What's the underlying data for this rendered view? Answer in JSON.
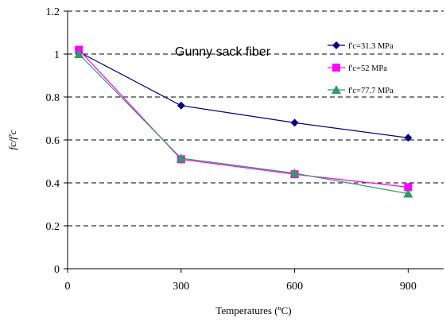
{
  "chart_data": {
    "type": "line",
    "title": "Gunny sack fiber",
    "xlabel": "Temperatures (ºC)",
    "ylabel": "fc/f'c",
    "xlim": [
      0,
      1000
    ],
    "ylim": [
      0,
      1.2
    ],
    "xticks": [
      0,
      300,
      600,
      900
    ],
    "yticks": [
      0,
      0.2,
      0.4,
      0.6,
      0.8,
      1,
      1.2
    ],
    "ytick_labels": [
      "0",
      "0.2",
      "0.4",
      "0.6",
      "0.8",
      "1",
      "1.2"
    ],
    "grid": "horizontal dashed",
    "legend_position": "top-right",
    "x": [
      30,
      300,
      600,
      900
    ],
    "series": [
      {
        "name": "f'c=31.3 MPa",
        "values": [
          1.01,
          0.76,
          0.68,
          0.61
        ],
        "color": "#000080",
        "marker": "diamond"
      },
      {
        "name": "f'c=52 MPa",
        "values": [
          1.02,
          0.51,
          0.44,
          0.38
        ],
        "color": "#FF00FF",
        "marker": "square"
      },
      {
        "name": "f'c=77.7 MPa",
        "values": [
          1.0,
          0.515,
          0.445,
          0.35
        ],
        "color": "#339966",
        "marker": "triangle"
      }
    ]
  }
}
